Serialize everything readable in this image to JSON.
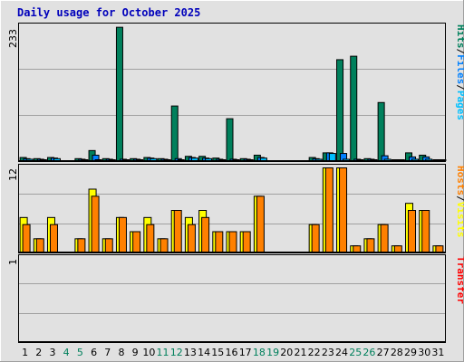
{
  "title": "Daily usage for October 2025",
  "colors": {
    "background": "#e1e1e1",
    "title": "#0000bb",
    "hits": "#00805c",
    "files": "#0080ff",
    "pages": "#00c0ff",
    "visits": "#ffff00",
    "hosts": "#ff8000",
    "transfer": "#ff0000",
    "weekend": "#00805c",
    "weekday": "#000000"
  },
  "chart_data": [
    {
      "type": "bar",
      "panel": "hits-files-pages",
      "ymax_label": "233",
      "ylim": [
        0,
        233
      ],
      "side_label": [
        "Hits",
        "/",
        "Files",
        "/",
        "Pages"
      ],
      "categories": [
        "1",
        "2",
        "3",
        "4",
        "5",
        "6",
        "7",
        "8",
        "9",
        "10",
        "11",
        "12",
        "13",
        "14",
        "15",
        "16",
        "17",
        "18",
        "19",
        "20",
        "21",
        "22",
        "23",
        "24",
        "25",
        "26",
        "27",
        "28",
        "29",
        "30",
        "31"
      ],
      "series": [
        {
          "name": "Hits",
          "values": [
            7,
            5,
            7,
            0,
            5,
            19,
            5,
            232,
            5,
            7,
            5,
            96,
            9,
            9,
            6,
            74,
            5,
            11,
            0,
            0,
            0,
            7,
            15,
            176,
            182,
            5,
            102,
            3,
            15,
            11,
            3
          ]
        },
        {
          "name": "Files",
          "values": [
            5,
            4,
            6,
            0,
            4,
            11,
            4,
            4,
            4,
            6,
            4,
            5,
            7,
            6,
            4,
            4,
            4,
            7,
            0,
            0,
            0,
            5,
            15,
            14,
            4,
            4,
            10,
            2,
            8,
            8,
            2
          ]
        },
        {
          "name": "Pages",
          "values": [
            4,
            3,
            5,
            0,
            3,
            3,
            3,
            3,
            3,
            5,
            3,
            3,
            6,
            5,
            3,
            3,
            3,
            6,
            0,
            0,
            0,
            4,
            14,
            4,
            3,
            3,
            4,
            1,
            4,
            4,
            1
          ]
        }
      ]
    },
    {
      "type": "bar",
      "panel": "visits-hosts",
      "ymax_label": "12",
      "ylim": [
        0,
        12
      ],
      "side_label": [
        "Hosts",
        "/",
        "Visits"
      ],
      "categories": [
        "1",
        "2",
        "3",
        "4",
        "5",
        "6",
        "7",
        "8",
        "9",
        "10",
        "11",
        "12",
        "13",
        "14",
        "15",
        "16",
        "17",
        "18",
        "19",
        "20",
        "21",
        "22",
        "23",
        "24",
        "25",
        "26",
        "27",
        "28",
        "29",
        "30",
        "31"
      ],
      "series": [
        {
          "name": "Visits",
          "values": [
            5,
            2,
            5,
            0,
            2,
            9,
            2,
            5,
            3,
            5,
            2,
            6,
            5,
            6,
            3,
            3,
            3,
            8,
            0,
            0,
            0,
            4,
            12,
            12,
            1,
            2,
            4,
            1,
            7,
            6,
            1
          ]
        },
        {
          "name": "Hosts",
          "values": [
            4,
            2,
            4,
            0,
            2,
            8,
            2,
            5,
            3,
            4,
            2,
            6,
            4,
            5,
            3,
            3,
            3,
            8,
            0,
            0,
            0,
            4,
            12,
            12,
            1,
            2,
            4,
            1,
            6,
            6,
            1
          ]
        }
      ]
    },
    {
      "type": "bar",
      "panel": "transfer",
      "ymax_label": "1",
      "ylim": [
        0,
        1
      ],
      "side_label": [
        "Transfer"
      ],
      "categories": [
        "1",
        "2",
        "3",
        "4",
        "5",
        "6",
        "7",
        "8",
        "9",
        "10",
        "11",
        "12",
        "13",
        "14",
        "15",
        "16",
        "17",
        "18",
        "19",
        "20",
        "21",
        "22",
        "23",
        "24",
        "25",
        "26",
        "27",
        "28",
        "29",
        "30",
        "31"
      ],
      "series": [
        {
          "name": "Transfer",
          "values": [
            0,
            0,
            0,
            0,
            0,
            0,
            0,
            0,
            0,
            0,
            0,
            0,
            0,
            0,
            0,
            0,
            0,
            0,
            0,
            0,
            0,
            0,
            0,
            0,
            0,
            0,
            0,
            0,
            0,
            0,
            0
          ]
        }
      ]
    }
  ],
  "weekend_days": [
    "4",
    "5",
    "11",
    "12",
    "18",
    "19",
    "25",
    "26"
  ]
}
